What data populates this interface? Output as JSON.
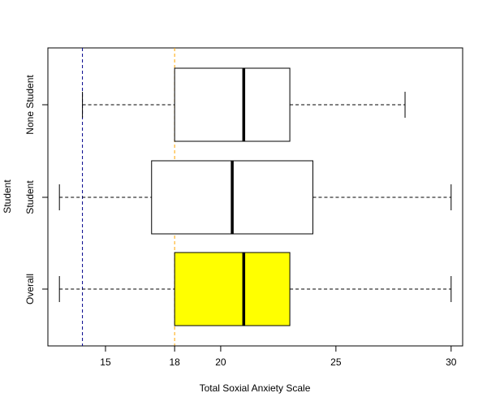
{
  "chart_data": {
    "type": "boxplot",
    "orientation": "horizontal",
    "xlabel": "Total Soxial Anxiety Scale",
    "ylabel": "Student",
    "xlim": [
      12.5,
      30.5
    ],
    "xticks": [
      15,
      18,
      20,
      25,
      30
    ],
    "categories": [
      "Overall",
      "Student",
      "None Student"
    ],
    "boxes": [
      {
        "label": "Overall",
        "min": 13,
        "q1": 18,
        "median": 21,
        "q3": 23,
        "max": 30,
        "fill": "#ffff00"
      },
      {
        "label": "Student",
        "min": 13,
        "q1": 17,
        "median": 20.5,
        "q3": 24,
        "max": 30,
        "fill": "#ffffff"
      },
      {
        "label": "None Student",
        "min": 14,
        "q1": 18,
        "median": 21,
        "q3": 23,
        "max": 28,
        "fill": "#ffffff"
      }
    ],
    "reference_lines": [
      {
        "value": 14,
        "color": "#00008b",
        "style": "dashed"
      },
      {
        "value": 18,
        "color": "#ffa500",
        "style": "dashed"
      }
    ],
    "grid": false,
    "legend": "none"
  }
}
